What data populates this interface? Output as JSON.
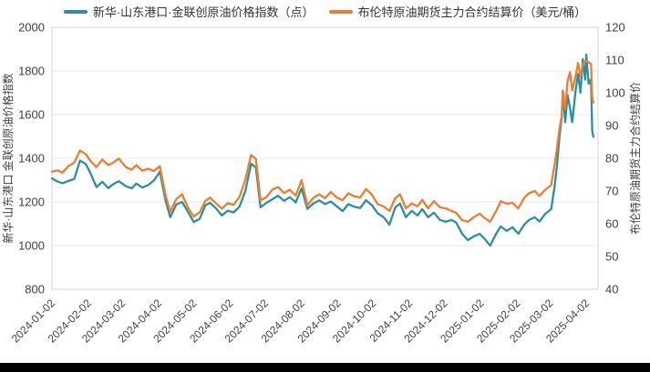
{
  "window": {
    "background": "#ffffff",
    "bottom_bar_color": "#000000"
  },
  "legend": {
    "items": [
      {
        "label": "新华·山东港口·金联创原油价格指数（点）",
        "color": "#2b8fa0"
      },
      {
        "label": "布伦特原油期货主力合约结算价（美元/桶）",
        "color": "#ee7d2f"
      }
    ]
  },
  "colors": {
    "index_line": "#2b8fa0",
    "brent_line": "#ee7d2f",
    "gridline": "#e3e7ea",
    "plot_border": "#ccd5dc",
    "axis_text": "#3f3f3f"
  },
  "chart_data": {
    "type": "line",
    "title": "",
    "grid": "horizontal-only-left-ticks",
    "legend_position": "top-center",
    "y_left": {
      "label": "新华·山东港口 金联创原油价格指数",
      "min": 800,
      "max": 2000,
      "ticks": [
        2000,
        1800,
        1600,
        1400,
        1200,
        1000,
        800
      ]
    },
    "y_right": {
      "label": "布伦特原油期货主力合约结算价",
      "min": 40,
      "max": 120,
      "ticks": [
        120,
        110,
        100,
        90,
        80,
        70,
        60,
        50,
        40
      ]
    },
    "x": {
      "tick_labels": [
        "2024-01-02",
        "2024-02-02",
        "2024-03-02",
        "2024-04-02",
        "2024-05-02",
        "2024-06-02",
        "2024-07-02",
        "2024-08-02",
        "2024-09-02",
        "2024-10-02",
        "2024-11-02",
        "2024-12-02",
        "2025-01-02",
        "2025-02-02",
        "2025-03-02",
        "2025-04-02"
      ],
      "tick_days": [
        0,
        31,
        60,
        91,
        121,
        152,
        182,
        213,
        244,
        274,
        305,
        335,
        366,
        397,
        425,
        456
      ],
      "max_day": 466
    },
    "x_days": [
      0,
      5,
      9,
      14,
      19,
      24,
      29,
      33,
      38,
      43,
      48,
      52,
      57,
      63,
      68,
      72,
      77,
      82,
      87,
      92,
      97,
      101,
      106,
      111,
      116,
      121,
      126,
      131,
      135,
      140,
      145,
      150,
      155,
      160,
      165,
      170,
      174,
      178,
      183,
      188,
      193,
      198,
      203,
      208,
      213,
      218,
      223,
      228,
      233,
      238,
      243,
      248,
      253,
      258,
      263,
      268,
      273,
      278,
      283,
      288,
      293,
      297,
      302,
      307,
      312,
      316,
      321,
      326,
      331,
      336,
      341,
      345,
      350,
      355,
      360,
      365,
      369,
      374,
      379,
      383,
      388,
      393,
      398,
      403,
      407,
      412,
      416,
      421,
      426,
      429,
      431,
      433,
      435,
      436,
      438,
      440,
      442,
      444,
      447,
      449,
      451,
      453,
      455,
      456,
      458,
      460,
      461,
      462
    ],
    "series": [
      {
        "name": "新华·山东港口·金联创原油价格指数（点）",
        "axis": "left",
        "color": "#2b8fa0",
        "values": [
          1308,
          1293,
          1286,
          1296,
          1305,
          1390,
          1372,
          1330,
          1268,
          1292,
          1263,
          1280,
          1295,
          1272,
          1262,
          1284,
          1266,
          1277,
          1298,
          1338,
          1205,
          1130,
          1188,
          1200,
          1155,
          1108,
          1122,
          1185,
          1196,
          1170,
          1138,
          1160,
          1152,
          1178,
          1250,
          1375,
          1358,
          1175,
          1196,
          1212,
          1228,
          1205,
          1222,
          1198,
          1262,
          1168,
          1192,
          1207,
          1190,
          1202,
          1180,
          1158,
          1190,
          1178,
          1172,
          1208,
          1185,
          1148,
          1130,
          1096,
          1175,
          1192,
          1130,
          1159,
          1138,
          1167,
          1130,
          1151,
          1118,
          1109,
          1117,
          1105,
          1054,
          1025,
          1042,
          1054,
          1032,
          1000,
          1054,
          1088,
          1067,
          1084,
          1054,
          1096,
          1117,
          1130,
          1110,
          1146,
          1167,
          1272,
          1368,
          1494,
          1590,
          1704,
          1565,
          1690,
          1632,
          1565,
          1717,
          1787,
          1700,
          1854,
          1760,
          1875,
          1741,
          1762,
          1527,
          1498
        ]
      },
      {
        "name": "布伦特原油期货主力合约结算价（美元/桶）",
        "axis": "right",
        "color": "#ee7d2f",
        "values": [
          75.9,
          76.3,
          75.6,
          77.6,
          78.6,
          82.4,
          81.2,
          79.1,
          77.3,
          79.6,
          77.9,
          78.6,
          79.9,
          77.3,
          76.5,
          77.9,
          76.2,
          76.8,
          76.1,
          77.6,
          68.5,
          63.7,
          67.5,
          69.0,
          65.0,
          62.2,
          63.5,
          67.0,
          68.0,
          66.2,
          64.6,
          66.3,
          65.8,
          68.2,
          73.5,
          81.0,
          79.8,
          67.2,
          68.1,
          70.4,
          71.2,
          69.4,
          70.4,
          68.6,
          73.3,
          65.6,
          67.9,
          69.0,
          67.8,
          69.7,
          68.0,
          67.2,
          69.3,
          68.4,
          68.0,
          70.6,
          68.9,
          66.0,
          65.3,
          63.9,
          67.8,
          69.0,
          64.7,
          66.2,
          65.3,
          67.3,
          64.7,
          66.9,
          65.0,
          64.7,
          63.9,
          63.3,
          61.1,
          60.6,
          62.0,
          63.1,
          61.8,
          60.6,
          63.9,
          66.9,
          66.1,
          66.4,
          64.7,
          67.9,
          69.3,
          70.0,
          68.5,
          70.4,
          71.8,
          78.2,
          83.1,
          88.7,
          93.2,
          100.7,
          95.1,
          103.5,
          106.3,
          100.7,
          105.4,
          109.1,
          105.0,
          108.7,
          109.5,
          109.7,
          109.3,
          108.8,
          98.5,
          97.0
        ]
      }
    ]
  }
}
